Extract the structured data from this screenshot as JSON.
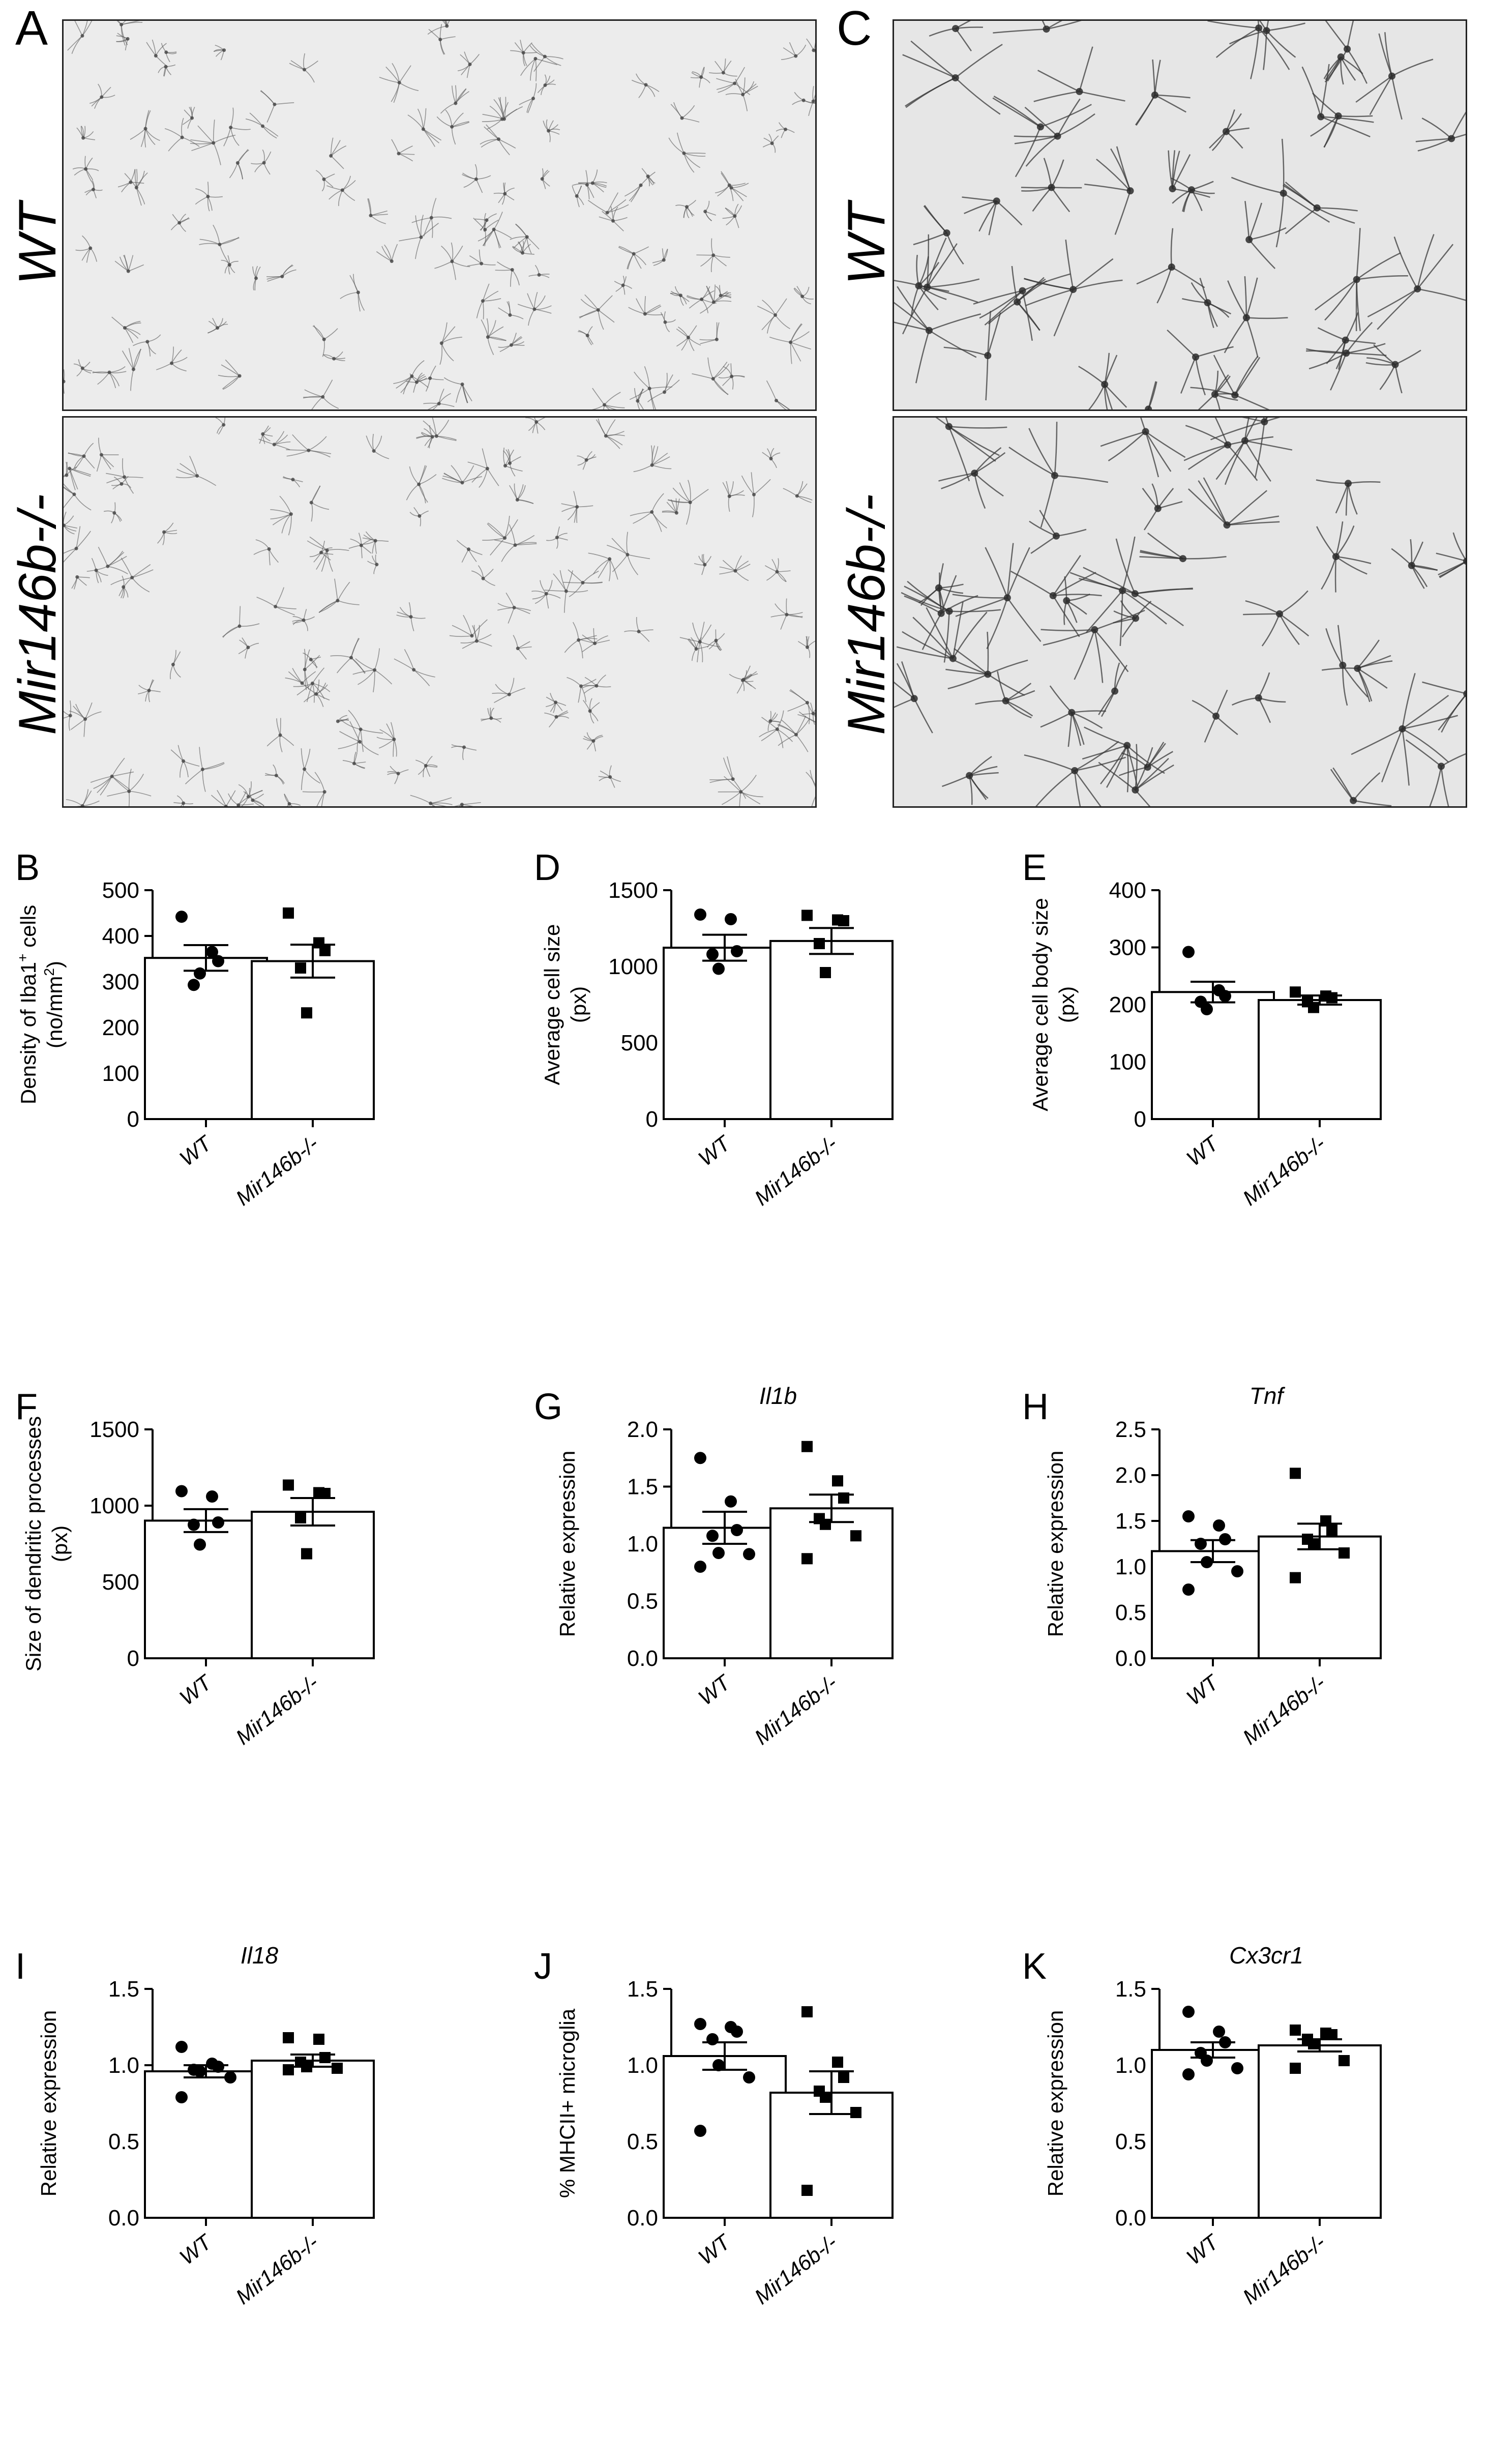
{
  "micro_panels": [
    {
      "letter": "A",
      "rows": [
        "WT",
        "Mir146b-/-"
      ],
      "density": "fine"
    },
    {
      "letter": "C",
      "rows": [
        "WT",
        "Mir146b-/-"
      ],
      "density": "coarse"
    }
  ],
  "chart_data": [
    {
      "letter": "B",
      "type": "bar",
      "title": "",
      "title_italic": false,
      "ylabel": [
        "Density of Iba1",
        "+",
        " cells",
        "(no/mm",
        "2",
        ")"
      ],
      "ylim": [
        0,
        500
      ],
      "yticks": [
        "0",
        "100",
        "200",
        "300",
        "400",
        "500"
      ],
      "categories": [
        "WT",
        "Mir146b-/-"
      ],
      "series": [
        {
          "values": [
            352,
            345
          ],
          "sem": [
            28,
            36
          ],
          "points": [
            [
              442,
              365,
              345,
              293,
              318
            ],
            [
              450,
              385,
              368,
              330,
              232
            ]
          ]
        }
      ]
    },
    {
      "letter": "D",
      "type": "bar",
      "title": "",
      "title_italic": false,
      "ylabel": [
        "Average cell size",
        "(px)"
      ],
      "ylim": [
        0,
        1500
      ],
      "yticks": [
        "0",
        "500",
        "1000",
        "1500"
      ],
      "categories": [
        "WT",
        "Mir146b-/-"
      ],
      "series": [
        {
          "values": [
            1123,
            1167
          ],
          "sem": [
            85,
            85
          ],
          "points": [
            [
              1340,
              1310,
              1100,
              1080,
              985
            ],
            [
              1335,
              1305,
              1300,
              1150,
              960
            ]
          ]
        }
      ]
    },
    {
      "letter": "E",
      "type": "bar",
      "title": "",
      "title_italic": false,
      "ylabel": [
        "Average cell body size",
        "(px)"
      ],
      "ylim": [
        0,
        400
      ],
      "yticks": [
        "0",
        "100",
        "200",
        "300",
        "400"
      ],
      "categories": [
        "WT",
        "Mir146b-/-"
      ],
      "series": [
        {
          "values": [
            222,
            208
          ],
          "sem": [
            18,
            8
          ],
          "points": [
            [
              292,
              225,
              215,
              205,
              192
            ],
            [
              222,
              215,
              212,
              205,
              195
            ]
          ]
        }
      ]
    },
    {
      "letter": "F",
      "type": "bar",
      "title": "",
      "title_italic": false,
      "ylabel": [
        "Size of dendritic processes",
        "(px)"
      ],
      "ylim": [
        0,
        1500
      ],
      "yticks": [
        "0",
        "500",
        "1000",
        "1500"
      ],
      "categories": [
        "WT",
        "Mir146b-/-"
      ],
      "series": [
        {
          "values": [
            902,
            960
          ],
          "sem": [
            75,
            90
          ],
          "points": [
            [
              1095,
              1060,
              890,
              875,
              745
            ],
            [
              1135,
              1085,
              1080,
              920,
              685
            ]
          ]
        }
      ]
    },
    {
      "letter": "G",
      "type": "bar",
      "title": "Il1b",
      "title_italic": true,
      "ylabel": [
        "Relative expression"
      ],
      "ylim": [
        0,
        2.0
      ],
      "yticks": [
        "0.0",
        "0.5",
        "1.0",
        "1.5",
        "2.0"
      ],
      "categories": [
        "WT",
        "Mir146b-/-"
      ],
      "series": [
        {
          "values": [
            1.14,
            1.31
          ],
          "sem": [
            0.14,
            0.12
          ],
          "points": [
            [
              1.75,
              1.37,
              1.12,
              1.07,
              0.92,
              0.91,
              0.8
            ],
            [
              1.85,
              1.55,
              1.4,
              1.22,
              1.17,
              1.07,
              0.87
            ]
          ]
        }
      ]
    },
    {
      "letter": "H",
      "type": "bar",
      "title": "Tnf",
      "title_italic": true,
      "ylabel": [
        "Relative expression"
      ],
      "ylim": [
        0,
        2.5
      ],
      "yticks": [
        "0.0",
        "0.5",
        "1.0",
        "1.5",
        "2.0",
        "2.5"
      ],
      "categories": [
        "WT",
        "Mir146b-/-"
      ],
      "series": [
        {
          "values": [
            1.17,
            1.33
          ],
          "sem": [
            0.12,
            0.14
          ],
          "points": [
            [
              1.55,
              1.45,
              1.3,
              1.25,
              1.05,
              0.95,
              0.75
            ],
            [
              2.02,
              1.5,
              1.4,
              1.3,
              1.25,
              1.15,
              0.88
            ]
          ]
        }
      ]
    },
    {
      "letter": "I",
      "type": "bar",
      "title": "Il18",
      "title_italic": true,
      "ylabel": [
        "Relative expression"
      ],
      "ylim": [
        0,
        1.5
      ],
      "yticks": [
        "0.0",
        "0.5",
        "1.0",
        "1.5"
      ],
      "categories": [
        "WT",
        "Mir146b-/-"
      ],
      "series": [
        {
          "values": [
            0.96,
            1.03
          ],
          "sem": [
            0.04,
            0.04
          ],
          "points": [
            [
              1.12,
              1.01,
              0.99,
              0.97,
              0.96,
              0.92,
              0.79
            ],
            [
              1.18,
              1.17,
              1.05,
              1.02,
              0.99,
              0.98,
              0.97
            ]
          ]
        }
      ]
    },
    {
      "letter": "J",
      "type": "bar",
      "title": "",
      "title_italic": false,
      "ylabel": [
        "% MHCII+ microglia"
      ],
      "ylim": [
        0,
        1.5
      ],
      "yticks": [
        "0.0",
        "0.5",
        "1.0",
        "1.5"
      ],
      "categories": [
        "WT",
        "Mir146b-/-"
      ],
      "series": [
        {
          "values": [
            1.06,
            0.82
          ],
          "sem": [
            0.09,
            0.14
          ],
          "points": [
            [
              1.27,
              1.25,
              1.22,
              1.17,
              1.0,
              0.92,
              0.57
            ],
            [
              1.35,
              1.02,
              0.92,
              0.83,
              0.79,
              0.69,
              0.18
            ]
          ]
        }
      ]
    },
    {
      "letter": "K",
      "type": "bar",
      "title": "Cx3cr1",
      "title_italic": true,
      "ylabel": [
        "Relative expression"
      ],
      "ylim": [
        0,
        1.5
      ],
      "yticks": [
        "0.0",
        "0.5",
        "1.0",
        "1.5"
      ],
      "categories": [
        "WT",
        "Mir146b-/-"
      ],
      "series": [
        {
          "values": [
            1.1,
            1.13
          ],
          "sem": [
            0.05,
            0.04
          ],
          "points": [
            [
              1.35,
              1.22,
              1.15,
              1.08,
              1.03,
              0.98,
              0.94
            ],
            [
              1.23,
              1.21,
              1.2,
              1.17,
              1.14,
              1.03,
              0.98
            ]
          ]
        }
      ]
    }
  ]
}
